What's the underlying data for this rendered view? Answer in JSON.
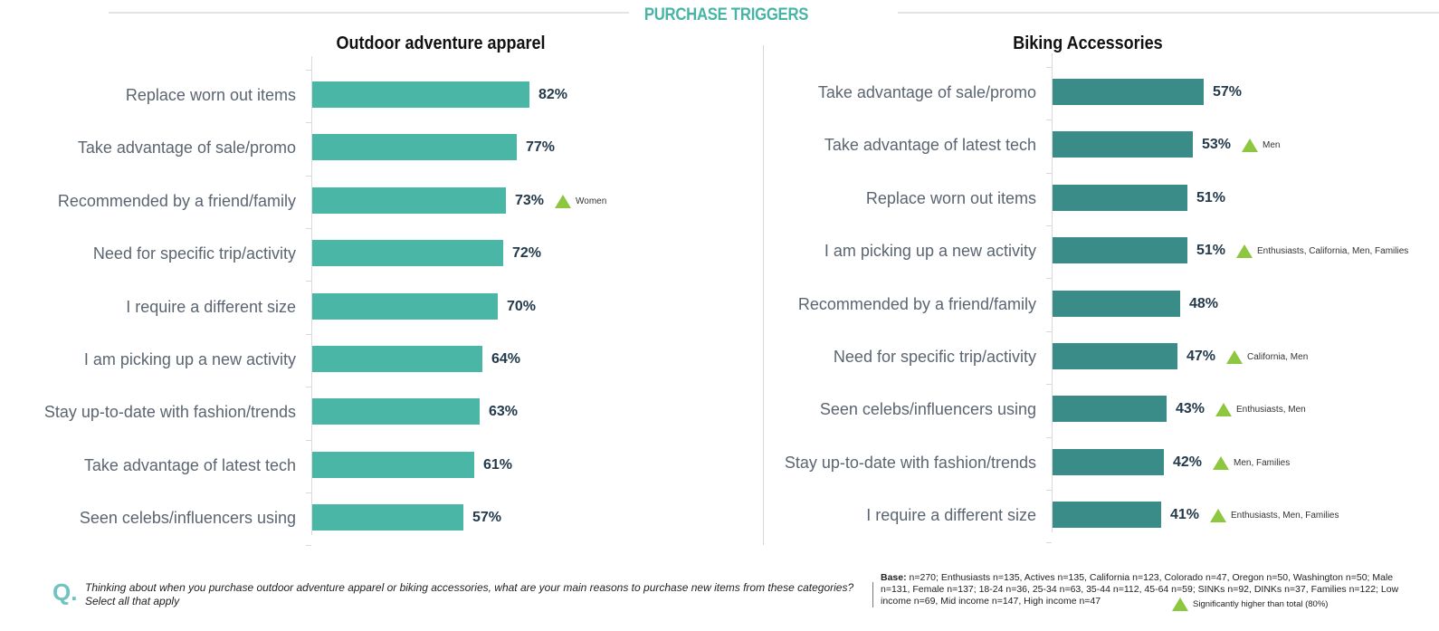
{
  "header": {
    "section_title": "PURCHASE TRIGGERS"
  },
  "colors": {
    "accent_title": "#47b5a5",
    "left_bar": "#49b6a6",
    "right_bar": "#3a8c89",
    "value_text": "#233a4c",
    "significance_marker": "#8dc63f"
  },
  "charts": {
    "left": {
      "title": "Outdoor adventure apparel",
      "rows": [
        {
          "label": "Replace worn out items",
          "value": 82,
          "display": "82%",
          "sig": ""
        },
        {
          "label": "Take advantage of sale/promo",
          "value": 77,
          "display": "77%",
          "sig": ""
        },
        {
          "label": "Recommended by a friend/family",
          "value": 73,
          "display": "73%",
          "sig": "Women"
        },
        {
          "label": "Need for specific trip/activity",
          "value": 72,
          "display": "72%",
          "sig": ""
        },
        {
          "label": "I require a different size",
          "value": 70,
          "display": "70%",
          "sig": ""
        },
        {
          "label": "I am picking up a new activity",
          "value": 64,
          "display": "64%",
          "sig": ""
        },
        {
          "label": "Stay up-to-date with fashion/trends",
          "value": 63,
          "display": "63%",
          "sig": ""
        },
        {
          "label": "Take advantage of latest tech",
          "value": 61,
          "display": "61%",
          "sig": ""
        },
        {
          "label": "Seen celebs/influencers using",
          "value": 57,
          "display": "57%",
          "sig": ""
        }
      ]
    },
    "right": {
      "title": "Biking Accessories",
      "rows": [
        {
          "label": "Take advantage of sale/promo",
          "value": 57,
          "display": "57%",
          "sig": ""
        },
        {
          "label": "Take advantage of latest tech",
          "value": 53,
          "display": "53%",
          "sig": "Men"
        },
        {
          "label": "Replace worn out items",
          "value": 51,
          "display": "51%",
          "sig": ""
        },
        {
          "label": "I am picking up a new activity",
          "value": 51,
          "display": "51%",
          "sig": "Enthusiasts, California, Men, Families"
        },
        {
          "label": "Recommended by a friend/family",
          "value": 48,
          "display": "48%",
          "sig": ""
        },
        {
          "label": "Need for specific trip/activity",
          "value": 47,
          "display": "47%",
          "sig": "California, Men"
        },
        {
          "label": "Seen celebs/influencers using",
          "value": 43,
          "display": "43%",
          "sig": "Enthusiasts, Men"
        },
        {
          "label": "Stay up-to-date with fashion/trends",
          "value": 42,
          "display": "42%",
          "sig": "Men, Families"
        },
        {
          "label": "I require a different size",
          "value": 41,
          "display": "41%",
          "sig": "Enthusiasts, Men, Families"
        }
      ]
    }
  },
  "footer": {
    "q_marker": "Q.",
    "question": "Thinking about when you purchase outdoor adventure apparel or biking accessories, what are your main reasons to purchase new items from these categories? Select all that apply",
    "base_label": "Base:",
    "base_text": " n=270; Enthusiasts n=135, Actives n=135, California n=123, Colorado n=47, Oregon n=50, Washington n=50; Male n=131, Female n=137; 18-24 n=36, 25-34 n=63, 35-44 n=112, 45-64 n=59; SINKs n=92, DINKs n=37, Families n=122; Low income n=69, Mid income n=147, High income n=47",
    "legend_text": "Significantly higher than total (80%)"
  },
  "chart_data": [
    {
      "type": "bar",
      "orientation": "horizontal",
      "title": "Outdoor adventure apparel",
      "supertitle": "PURCHASE TRIGGERS",
      "categories": [
        "Replace worn out items",
        "Take advantage of sale/promo",
        "Recommended by a friend/family",
        "Need for specific trip/activity",
        "I require a different size",
        "I am picking up a new activity",
        "Stay up-to-date with fashion/trends",
        "Take advantage of latest tech",
        "Seen celebs/influencers using"
      ],
      "values": [
        82,
        77,
        73,
        72,
        70,
        64,
        63,
        61,
        57
      ],
      "unit": "%",
      "annotations": [
        {
          "category": "Recommended by a friend/family",
          "marker": "up-triangle",
          "text": "Women"
        }
      ],
      "xlabel": "",
      "ylabel": "",
      "xlim": [
        0,
        100
      ],
      "grid": false,
      "legend": "bottom-right"
    },
    {
      "type": "bar",
      "orientation": "horizontal",
      "title": "Biking Accessories",
      "supertitle": "PURCHASE TRIGGERS",
      "categories": [
        "Take advantage of sale/promo",
        "Take advantage of latest tech",
        "Replace worn out items",
        "I am picking up a new activity",
        "Recommended by a friend/family",
        "Need for specific trip/activity",
        "Seen celebs/influencers using",
        "Stay up-to-date with fashion/trends",
        "I require a different size"
      ],
      "values": [
        57,
        53,
        51,
        51,
        48,
        47,
        43,
        42,
        41
      ],
      "unit": "%",
      "annotations": [
        {
          "category": "Take advantage of latest tech",
          "marker": "up-triangle",
          "text": "Men"
        },
        {
          "category": "I am picking up a new activity",
          "marker": "up-triangle",
          "text": "Enthusiasts, California, Men, Families"
        },
        {
          "category": "Need for specific trip/activity",
          "marker": "up-triangle",
          "text": "California, Men"
        },
        {
          "category": "Seen celebs/influencers using",
          "marker": "up-triangle",
          "text": "Enthusiasts, Men"
        },
        {
          "category": "Stay up-to-date with fashion/trends",
          "marker": "up-triangle",
          "text": "Men, Families"
        },
        {
          "category": "I require a different size",
          "marker": "up-triangle",
          "text": "Enthusiasts, Men, Families"
        }
      ],
      "xlabel": "",
      "ylabel": "",
      "xlim": [
        0,
        100
      ],
      "grid": false,
      "legend_entries": [
        "Significantly higher than total (80%)"
      ]
    }
  ]
}
